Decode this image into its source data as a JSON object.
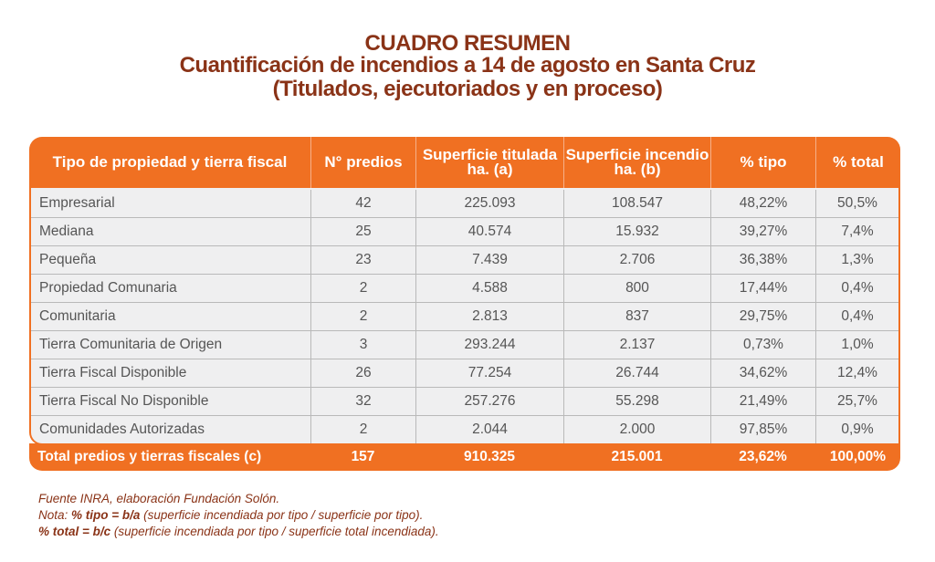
{
  "title": {
    "line1": "CUADRO RESUMEN",
    "line2": "Cuantificación de incendios a 14 de agosto en Santa Cruz",
    "line3": "(Titulados, ejecutoriados y en proceso)"
  },
  "headers": [
    "Tipo de propiedad y tierra fiscal",
    "N° predios",
    "Superficie titulada ha. (a)",
    "Superficie incendio ha. (b)",
    "% tipo",
    "% total"
  ],
  "rows": [
    [
      "Empresarial",
      "42",
      "225.093",
      "108.547",
      "48,22%",
      "50,5%"
    ],
    [
      "Mediana",
      "25",
      "40.574",
      "15.932",
      "39,27%",
      "7,4%"
    ],
    [
      "Pequeña",
      "23",
      "7.439",
      "2.706",
      "36,38%",
      "1,3%"
    ],
    [
      "Propiedad Comunaria",
      "2",
      "4.588",
      "800",
      "17,44%",
      "0,4%"
    ],
    [
      "Comunitaria",
      "2",
      "2.813",
      "837",
      "29,75%",
      "0,4%"
    ],
    [
      "Tierra Comunitaria de Origen",
      "3",
      "293.244",
      "2.137",
      "0,73%",
      "1,0%"
    ],
    [
      "Tierra Fiscal Disponible",
      "26",
      "77.254",
      "26.744",
      "34,62%",
      "12,4%"
    ],
    [
      "Tierra Fiscal No Disponible",
      "32",
      "257.276",
      "55.298",
      "21,49%",
      "25,7%"
    ],
    [
      "Comunidades Autorizadas",
      "2",
      "2.044",
      "2.000",
      "97,85%",
      "0,9%"
    ]
  ],
  "total": [
    "Total predios y tierras fiscales (c)",
    "157",
    "910.325",
    "215.001",
    "23,62%",
    "100,00%"
  ],
  "notes": {
    "source": "Fuente INRA, elaboración Fundación Solón.",
    "nota_prefix": "Nota: ",
    "nota_bold": "% tipo = b/a",
    "nota_rest": " (superficie incendiada por tipo / superficie por tipo).",
    "total_bold": "% total = b/c",
    "total_rest": " (superficie incendiada por tipo / superficie total incendiada)."
  }
}
